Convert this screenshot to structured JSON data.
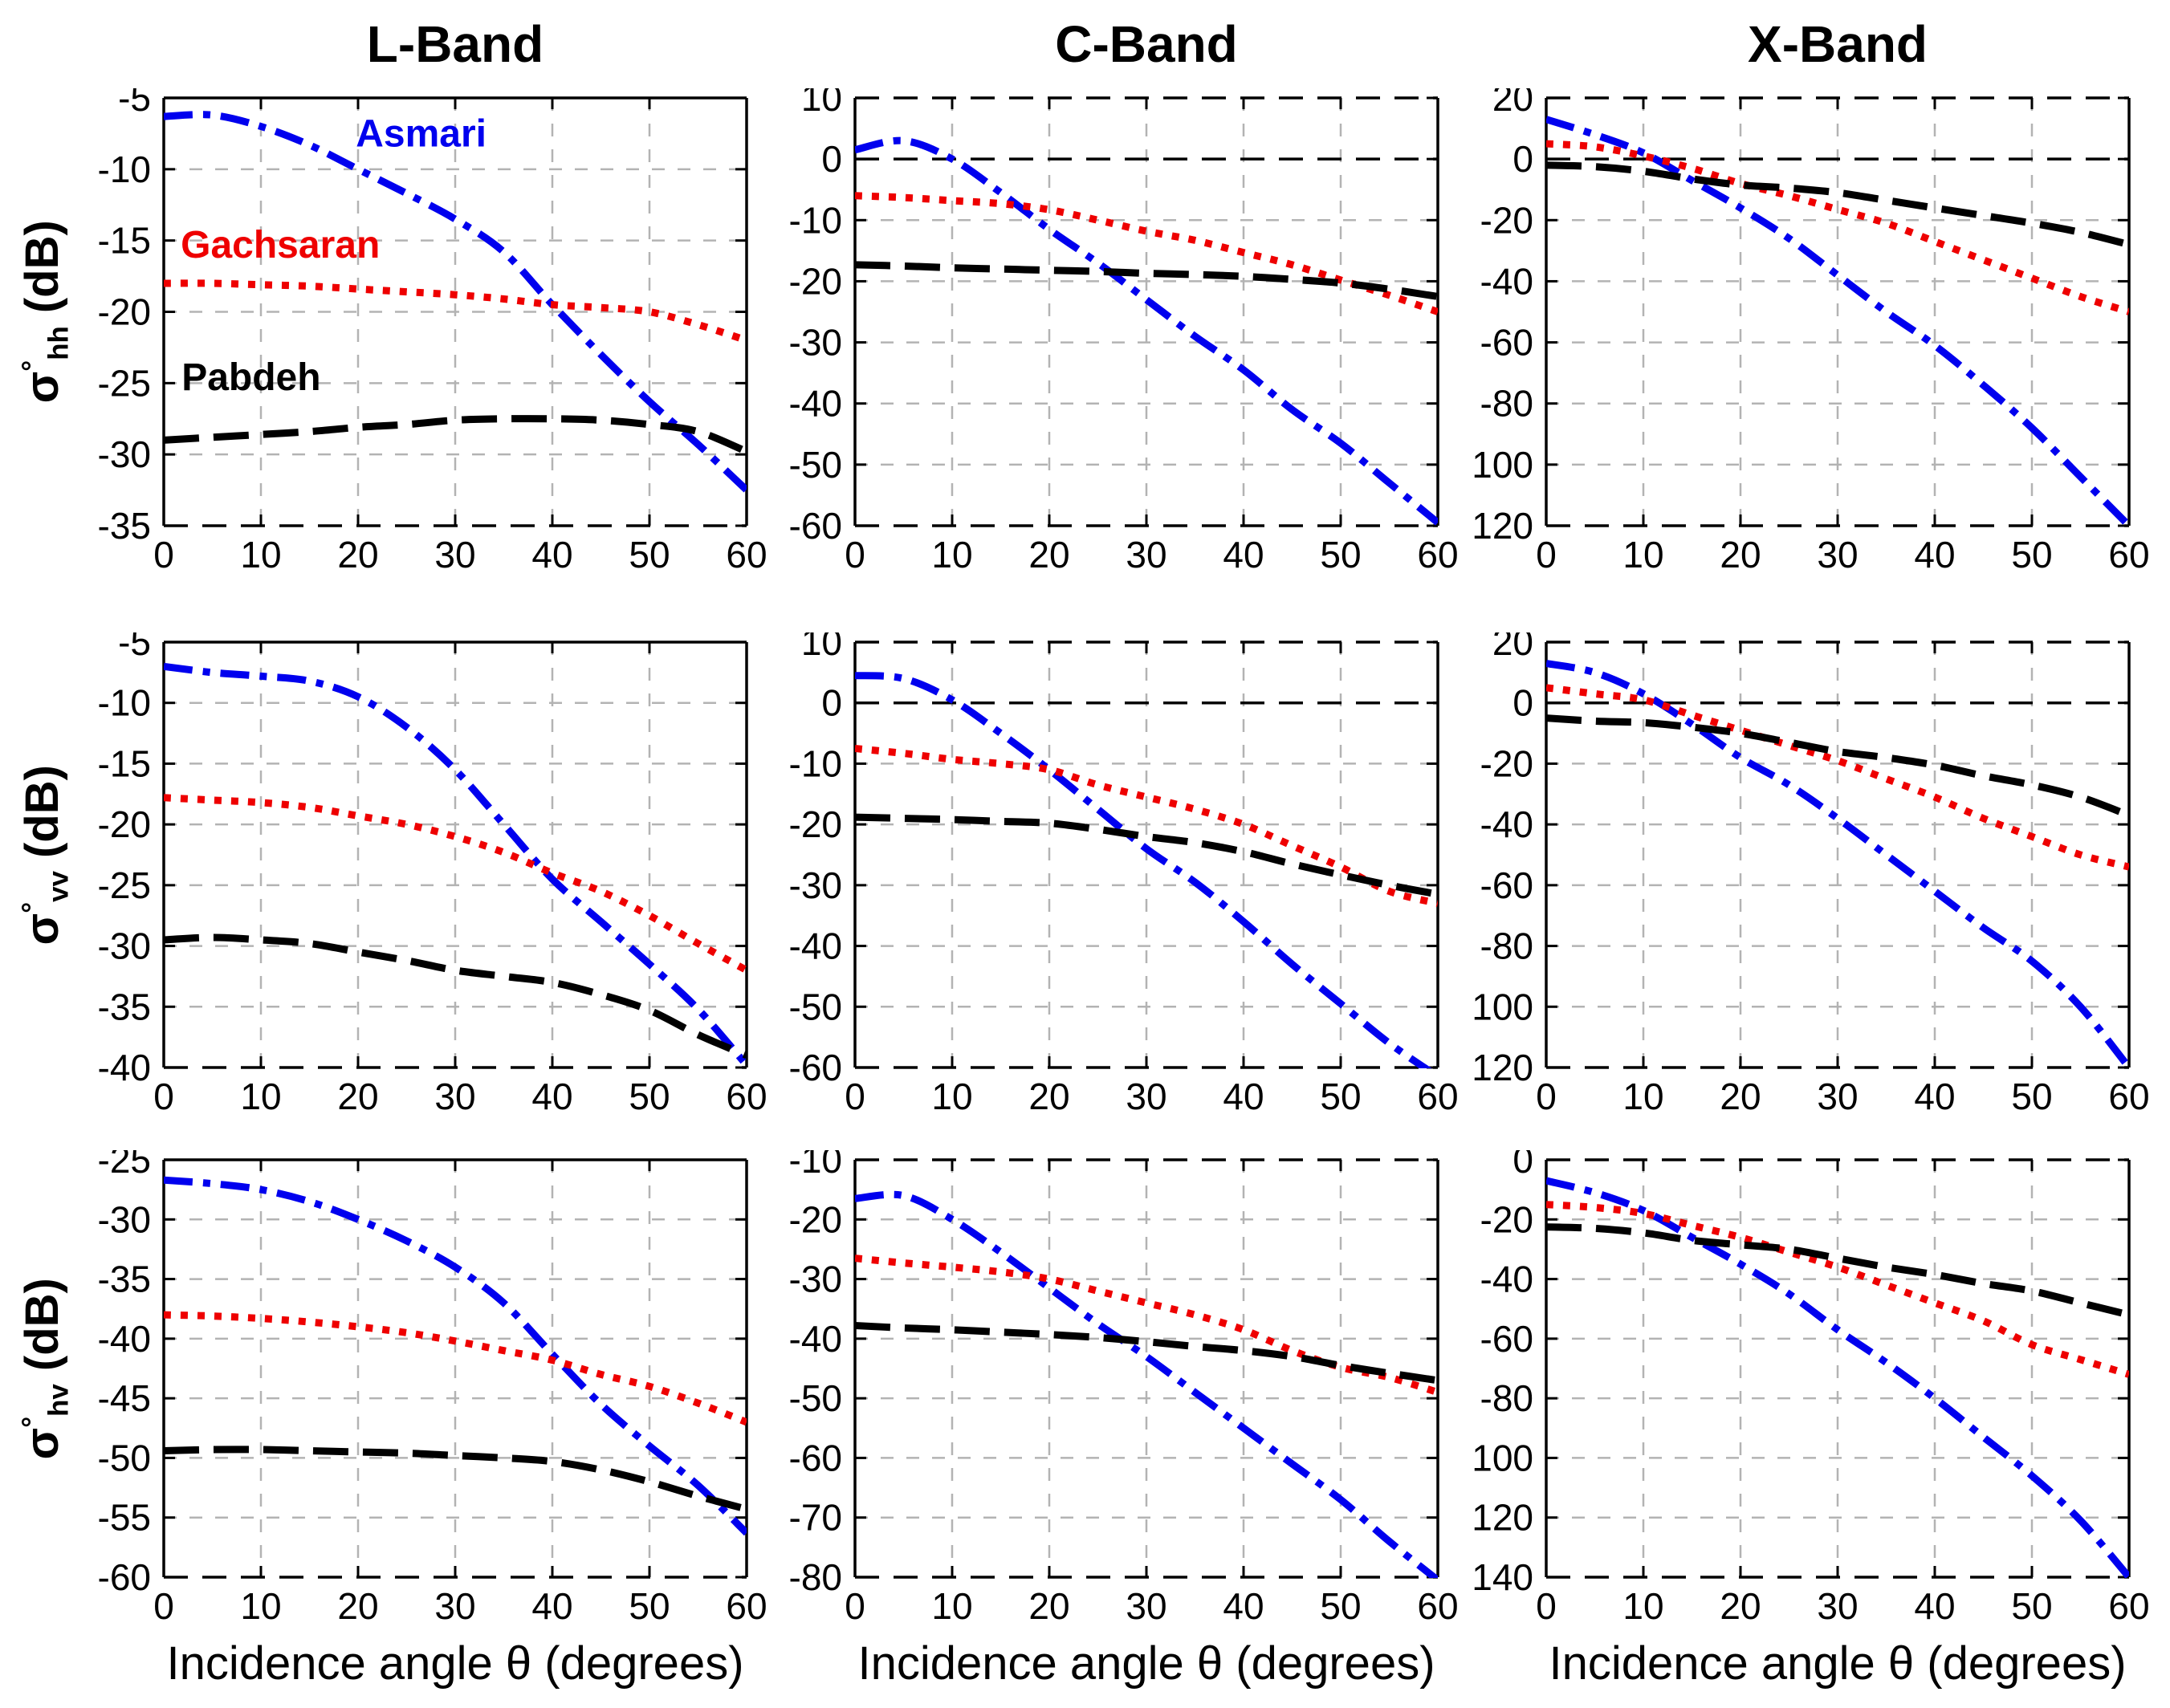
{
  "figure": {
    "titles": [
      "L-Band",
      "C-Band",
      "X-Band"
    ],
    "xlabel": "Incidence angle θ (degrees)",
    "row_labels": [
      {
        "sigma": "σ",
        "sup": "°",
        "sub": "hh",
        "unit": " (dB)"
      },
      {
        "sigma": "σ",
        "sup": "°",
        "sub": "vv",
        "unit": " (dB)"
      },
      {
        "sigma": "σ",
        "sup": "°",
        "sub": "hv",
        "unit": " (dB)"
      }
    ],
    "colors": {
      "asmari": "#0000EE",
      "gachsaran": "#EE0000",
      "pabdeh": "#000000",
      "grid": "#B3B3B3",
      "axis": "#000000",
      "background": "#FFFFFF"
    }
  },
  "legend": {
    "items": [
      {
        "label": "Asmari",
        "color": "#0000EE",
        "line_style": "dashdot"
      },
      {
        "label": "Gachsaran",
        "color": "#EE0000",
        "line_style": "dotted"
      },
      {
        "label": "Pabdeh",
        "color": "#000000",
        "line_style": "dashed"
      }
    ]
  },
  "chart_data": [
    {
      "type": "line",
      "band": "L-Band",
      "polarization": "hh",
      "xlabel": "Incidence angle θ (degrees)",
      "ylabel": "σ°hh (dB)",
      "x": [
        0,
        5,
        10,
        15,
        20,
        25,
        30,
        35,
        40,
        45,
        50,
        55,
        60
      ],
      "xlim": [
        0,
        60
      ],
      "xticks": [
        0,
        10,
        20,
        30,
        40,
        50,
        60
      ],
      "ylim": [
        -35,
        -5
      ],
      "yticks": [
        -5,
        -10,
        -15,
        -20,
        -25,
        -30,
        -35
      ],
      "grid": true,
      "zero_line": false,
      "top_dashed": false,
      "series": [
        {
          "name": "Asmari",
          "color": "#0000EE",
          "line_style": "dashdot",
          "values": [
            -6.3,
            -6.2,
            -7.0,
            -8.3,
            -10.0,
            -11.7,
            -13.5,
            -15.8,
            -19.5,
            -23.0,
            -26.3,
            -29.3,
            -32.5
          ]
        },
        {
          "name": "Gachsaran",
          "color": "#EE0000",
          "line_style": "dotted",
          "values": [
            -18.0,
            -18.0,
            -18.1,
            -18.2,
            -18.4,
            -18.6,
            -18.8,
            -19.1,
            -19.5,
            -19.7,
            -20.0,
            -20.9,
            -22.0
          ]
        },
        {
          "name": "Pabdeh",
          "color": "#000000",
          "line_style": "dashed",
          "values": [
            -29.0,
            -28.8,
            -28.6,
            -28.4,
            -28.1,
            -27.9,
            -27.6,
            -27.5,
            -27.5,
            -27.6,
            -27.9,
            -28.4,
            -29.8
          ]
        }
      ],
      "legend_labels": [
        {
          "label": "Asmari",
          "color": "#0000EE",
          "x": 26.5,
          "y": -8.4
        },
        {
          "label": "Gachsaran",
          "color": "#EE0000",
          "x": 12.0,
          "y": -16.2
        },
        {
          "label": "Pabdeh",
          "color": "#000000",
          "x": 9.0,
          "y": -25.5
        }
      ]
    },
    {
      "type": "line",
      "band": "C-Band",
      "polarization": "hh",
      "xlabel": "Incidence angle θ (degrees)",
      "ylabel": "σ°hh (dB)",
      "x": [
        0,
        5,
        10,
        15,
        20,
        25,
        30,
        35,
        40,
        45,
        50,
        55,
        60
      ],
      "xlim": [
        0,
        60
      ],
      "xticks": [
        0,
        10,
        20,
        30,
        40,
        50,
        60
      ],
      "ylim": [
        -60,
        10
      ],
      "yticks": [
        10,
        0,
        -10,
        -20,
        -30,
        -40,
        -50,
        -60
      ],
      "grid": true,
      "zero_line": true,
      "top_dashed": true,
      "series": [
        {
          "name": "Asmari",
          "color": "#0000EE",
          "line_style": "dashdot",
          "values": [
            1.5,
            3.0,
            0.0,
            -5.5,
            -11.5,
            -17.0,
            -23.0,
            -29.0,
            -34.5,
            -41.0,
            -46.5,
            -53.0,
            -59.5
          ]
        },
        {
          "name": "Gachsaran",
          "color": "#EE0000",
          "line_style": "dotted",
          "values": [
            -6.0,
            -6.3,
            -6.8,
            -7.3,
            -8.3,
            -10.0,
            -11.8,
            -13.3,
            -15.3,
            -17.3,
            -19.8,
            -22.3,
            -25.0
          ]
        },
        {
          "name": "Pabdeh",
          "color": "#000000",
          "line_style": "dashed",
          "values": [
            -17.3,
            -17.5,
            -17.8,
            -18.0,
            -18.2,
            -18.4,
            -18.7,
            -18.9,
            -19.2,
            -19.7,
            -20.3,
            -21.3,
            -22.5
          ]
        }
      ]
    },
    {
      "type": "line",
      "band": "X-Band",
      "polarization": "hh",
      "xlabel": "Incidence angle θ (degrees)",
      "ylabel": "σ°hh (dB)",
      "x": [
        0,
        5,
        10,
        15,
        20,
        25,
        30,
        35,
        40,
        45,
        50,
        55,
        60
      ],
      "xlim": [
        0,
        60
      ],
      "xticks": [
        0,
        10,
        20,
        30,
        40,
        50,
        60
      ],
      "ylim": [
        -120,
        20
      ],
      "yticks": [
        20,
        0,
        -20,
        -40,
        -60,
        -80,
        -100,
        -120
      ],
      "grid": true,
      "zero_line": true,
      "top_dashed": true,
      "series": [
        {
          "name": "Asmari",
          "color": "#0000EE",
          "line_style": "dashdot",
          "values": [
            13,
            8,
            2,
            -7,
            -16,
            -26,
            -38,
            -50,
            -61,
            -74,
            -88,
            -104,
            -120
          ]
        },
        {
          "name": "Gachsaran",
          "color": "#EE0000",
          "line_style": "dotted",
          "values": [
            5,
            4,
            1,
            -3,
            -8,
            -12,
            -16.5,
            -21,
            -27,
            -33,
            -39,
            -45,
            -50
          ]
        },
        {
          "name": "Pabdeh",
          "color": "#000000",
          "line_style": "dashed",
          "values": [
            -2,
            -2.5,
            -4,
            -6.5,
            -8.5,
            -9.5,
            -11,
            -13.5,
            -16,
            -18.5,
            -21,
            -24,
            -28
          ]
        }
      ]
    },
    {
      "type": "line",
      "band": "L-Band",
      "polarization": "vv",
      "xlabel": "Incidence angle θ (degrees)",
      "ylabel": "σ°vv (dB)",
      "x": [
        0,
        5,
        10,
        15,
        20,
        25,
        30,
        35,
        40,
        45,
        50,
        55,
        60
      ],
      "xlim": [
        0,
        60
      ],
      "xticks": [
        0,
        10,
        20,
        30,
        40,
        50,
        60
      ],
      "ylim": [
        -40,
        -5
      ],
      "yticks": [
        -5,
        -10,
        -15,
        -20,
        -25,
        -30,
        -35,
        -40
      ],
      "grid": true,
      "zero_line": false,
      "top_dashed": false,
      "series": [
        {
          "name": "Asmari",
          "color": "#0000EE",
          "line_style": "dashdot",
          "values": [
            -7.0,
            -7.5,
            -7.8,
            -8.2,
            -9.5,
            -12.0,
            -15.5,
            -20.0,
            -24.5,
            -28.0,
            -31.5,
            -35.2,
            -39.8
          ]
        },
        {
          "name": "Gachsaran",
          "color": "#EE0000",
          "line_style": "dotted",
          "values": [
            -17.8,
            -18.0,
            -18.2,
            -18.6,
            -19.3,
            -20.0,
            -21.0,
            -22.3,
            -24.0,
            -25.5,
            -27.5,
            -29.8,
            -32.0
          ]
        },
        {
          "name": "Pabdeh",
          "color": "#000000",
          "line_style": "dashed",
          "values": [
            -29.5,
            -29.3,
            -29.5,
            -29.8,
            -30.5,
            -31.2,
            -32.0,
            -32.5,
            -33.0,
            -34.0,
            -35.3,
            -37.3,
            -39.0
          ]
        }
      ]
    },
    {
      "type": "line",
      "band": "C-Band",
      "polarization": "vv",
      "xlabel": "Incidence angle θ (degrees)",
      "ylabel": "σ°vv (dB)",
      "x": [
        0,
        5,
        10,
        15,
        20,
        25,
        30,
        35,
        40,
        45,
        50,
        55,
        60
      ],
      "xlim": [
        0,
        60
      ],
      "xticks": [
        0,
        10,
        20,
        30,
        40,
        50,
        60
      ],
      "ylim": [
        -60,
        10
      ],
      "yticks": [
        10,
        0,
        -10,
        -20,
        -30,
        -40,
        -50,
        -60
      ],
      "grid": true,
      "zero_line": true,
      "top_dashed": true,
      "series": [
        {
          "name": "Asmari",
          "color": "#0000EE",
          "line_style": "dashdot",
          "values": [
            4.5,
            4.0,
            0.5,
            -5.0,
            -11.0,
            -17.5,
            -24.0,
            -29.5,
            -36.0,
            -43.0,
            -49.5,
            -56.0,
            -61.5
          ]
        },
        {
          "name": "Gachsaran",
          "color": "#EE0000",
          "line_style": "dotted",
          "values": [
            -7.5,
            -8.3,
            -9.3,
            -10.0,
            -11.0,
            -13.5,
            -15.5,
            -17.5,
            -20.0,
            -23.5,
            -27.0,
            -31.0,
            -33.0
          ]
        },
        {
          "name": "Pabdeh",
          "color": "#000000",
          "line_style": "dashed",
          "values": [
            -18.8,
            -19.0,
            -19.2,
            -19.5,
            -19.8,
            -20.8,
            -22.0,
            -23.0,
            -24.5,
            -26.5,
            -28.3,
            -30.0,
            -31.5
          ]
        }
      ]
    },
    {
      "type": "line",
      "band": "X-Band",
      "polarization": "vv",
      "xlabel": "Incidence angle θ (degrees)",
      "ylabel": "σ°vv (dB)",
      "x": [
        0,
        5,
        10,
        15,
        20,
        25,
        30,
        35,
        40,
        45,
        50,
        55,
        60
      ],
      "xlim": [
        0,
        60
      ],
      "xticks": [
        0,
        10,
        20,
        30,
        40,
        50,
        60
      ],
      "ylim": [
        -120,
        20
      ],
      "yticks": [
        20,
        0,
        -20,
        -40,
        -60,
        -80,
        -100,
        -120
      ],
      "grid": true,
      "zero_line": true,
      "top_dashed": true,
      "series": [
        {
          "name": "Asmari",
          "color": "#0000EE",
          "line_style": "dashdot",
          "values": [
            13,
            10,
            3,
            -7,
            -18,
            -27,
            -38,
            -50,
            -62,
            -74,
            -85,
            -100,
            -120
          ]
        },
        {
          "name": "Gachsaran",
          "color": "#EE0000",
          "line_style": "dotted",
          "values": [
            5,
            3,
            1,
            -4,
            -9,
            -14,
            -19,
            -25,
            -31,
            -38,
            -44,
            -50,
            -54
          ]
        },
        {
          "name": "Pabdeh",
          "color": "#000000",
          "line_style": "dashed",
          "values": [
            -5,
            -6,
            -6.5,
            -8,
            -10,
            -13,
            -16,
            -18,
            -20.5,
            -24,
            -27,
            -31,
            -37
          ]
        }
      ]
    },
    {
      "type": "line",
      "band": "L-Band",
      "polarization": "hv",
      "xlabel": "Incidence angle θ (degrees)",
      "ylabel": "σ°hv (dB)",
      "x": [
        0,
        5,
        10,
        15,
        20,
        25,
        30,
        35,
        40,
        45,
        50,
        55,
        60
      ],
      "xlim": [
        0,
        60
      ],
      "xticks": [
        0,
        10,
        20,
        30,
        40,
        50,
        60
      ],
      "ylim": [
        -60,
        -25
      ],
      "yticks": [
        -25,
        -30,
        -35,
        -40,
        -45,
        -50,
        -55,
        -60
      ],
      "grid": true,
      "zero_line": false,
      "top_dashed": false,
      "series": [
        {
          "name": "Asmari",
          "color": "#0000EE",
          "line_style": "dashdot",
          "values": [
            -26.7,
            -27.0,
            -27.5,
            -28.5,
            -30.0,
            -31.8,
            -34.0,
            -37.0,
            -41.3,
            -45.5,
            -49.0,
            -52.3,
            -56.3
          ]
        },
        {
          "name": "Gachsaran",
          "color": "#EE0000",
          "line_style": "dotted",
          "values": [
            -38.0,
            -38.1,
            -38.3,
            -38.6,
            -39.0,
            -39.5,
            -40.2,
            -41.0,
            -41.8,
            -43.0,
            -44.0,
            -45.4,
            -47.0
          ]
        },
        {
          "name": "Pabdeh",
          "color": "#000000",
          "line_style": "dashed",
          "values": [
            -49.4,
            -49.3,
            -49.3,
            -49.4,
            -49.5,
            -49.6,
            -49.8,
            -50.0,
            -50.3,
            -51.0,
            -52.0,
            -53.2,
            -54.3
          ]
        }
      ]
    },
    {
      "type": "line",
      "band": "C-Band",
      "polarization": "hv",
      "xlabel": "Incidence angle θ (degrees)",
      "ylabel": "σ°hv (dB)",
      "x": [
        0,
        5,
        10,
        15,
        20,
        25,
        30,
        35,
        40,
        45,
        50,
        55,
        60
      ],
      "xlim": [
        0,
        60
      ],
      "xticks": [
        0,
        10,
        20,
        30,
        40,
        50,
        60
      ],
      "ylim": [
        -80,
        -10
      ],
      "yticks": [
        -10,
        -20,
        -30,
        -40,
        -50,
        -60,
        -70,
        -80
      ],
      "grid": true,
      "zero_line": false,
      "top_dashed": true,
      "series": [
        {
          "name": "Asmari",
          "color": "#0000EE",
          "line_style": "dashdot",
          "values": [
            -16.5,
            -16.0,
            -20.0,
            -25.5,
            -31.5,
            -37.5,
            -43.0,
            -49.0,
            -55.0,
            -61.0,
            -67.0,
            -74.0,
            -80.5
          ]
        },
        {
          "name": "Gachsaran",
          "color": "#EE0000",
          "line_style": "dotted",
          "values": [
            -26.5,
            -27.3,
            -28.0,
            -28.8,
            -30.0,
            -32.0,
            -34.0,
            -36.0,
            -38.5,
            -42.0,
            -44.8,
            -46.5,
            -49.0
          ]
        },
        {
          "name": "Pabdeh",
          "color": "#000000",
          "line_style": "dashed",
          "values": [
            -37.8,
            -38.2,
            -38.5,
            -38.9,
            -39.3,
            -39.8,
            -40.5,
            -41.3,
            -42.0,
            -43.0,
            -44.5,
            -45.8,
            -47.0
          ]
        }
      ]
    },
    {
      "type": "line",
      "band": "X-Band",
      "polarization": "hv",
      "xlabel": "Incidence angle θ (degrees)",
      "ylabel": "σ°hv (dB)",
      "x": [
        0,
        5,
        10,
        15,
        20,
        25,
        30,
        35,
        40,
        45,
        50,
        55,
        60
      ],
      "xlim": [
        0,
        60
      ],
      "xticks": [
        0,
        10,
        20,
        30,
        40,
        50,
        60
      ],
      "ylim": [
        -140,
        0
      ],
      "yticks": [
        0,
        -20,
        -40,
        -60,
        -80,
        -100,
        -120,
        -140
      ],
      "grid": true,
      "zero_line": false,
      "top_dashed": true,
      "series": [
        {
          "name": "Asmari",
          "color": "#0000EE",
          "line_style": "dashdot",
          "values": [
            -7,
            -11,
            -17,
            -26,
            -35,
            -45,
            -57,
            -68,
            -80,
            -93,
            -106,
            -121,
            -140
          ]
        },
        {
          "name": "Gachsaran",
          "color": "#EE0000",
          "line_style": "dotted",
          "values": [
            -15,
            -16,
            -18,
            -22,
            -26,
            -31,
            -36,
            -42,
            -48,
            -54,
            -62,
            -67,
            -72
          ]
        },
        {
          "name": "Pabdeh",
          "color": "#000000",
          "line_style": "dashed",
          "values": [
            -22.5,
            -23,
            -24.5,
            -27,
            -28.5,
            -30,
            -33,
            -36,
            -38.5,
            -41.5,
            -44,
            -48,
            -52
          ]
        }
      ]
    }
  ]
}
